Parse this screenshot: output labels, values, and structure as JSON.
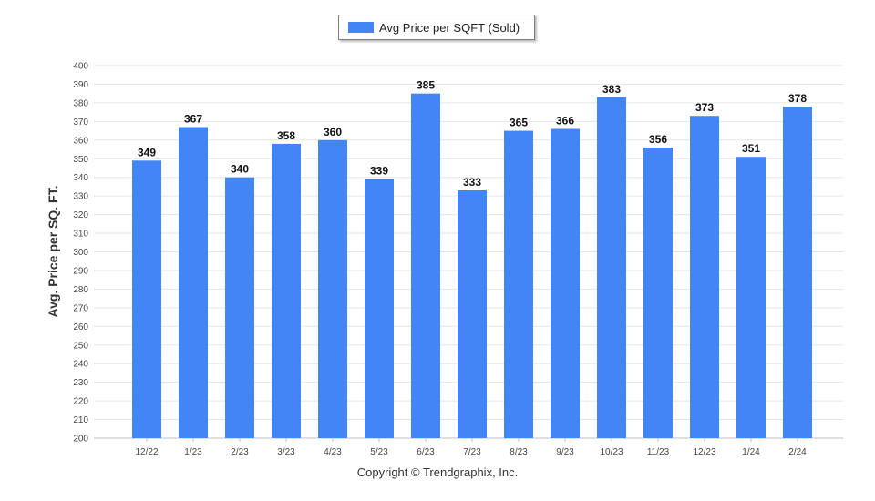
{
  "legend": {
    "label": "Avg Price per SQFT (Sold)"
  },
  "footer": {
    "copyright": "Copyright © Trendgraphix, Inc."
  },
  "colors": {
    "bar": "#4285f4",
    "grid": "#e6e6e6",
    "axis": "#bfbfbf"
  },
  "chart_data": {
    "type": "bar",
    "title": "",
    "xlabel": "",
    "ylabel": "Avg. Price per SQ. FT.",
    "ylim": [
      200,
      400
    ],
    "ytick_step": 10,
    "grid": true,
    "legend_position": "top-center",
    "categories": [
      "12/22",
      "1/23",
      "2/23",
      "3/23",
      "4/23",
      "5/23",
      "6/23",
      "7/23",
      "8/23",
      "9/23",
      "10/23",
      "11/23",
      "12/23",
      "1/24",
      "2/24"
    ],
    "series": [
      {
        "name": "Avg Price per SQFT (Sold)",
        "values": [
          349,
          367,
          340,
          358,
          360,
          339,
          385,
          333,
          365,
          366,
          383,
          356,
          373,
          351,
          378
        ]
      }
    ]
  }
}
